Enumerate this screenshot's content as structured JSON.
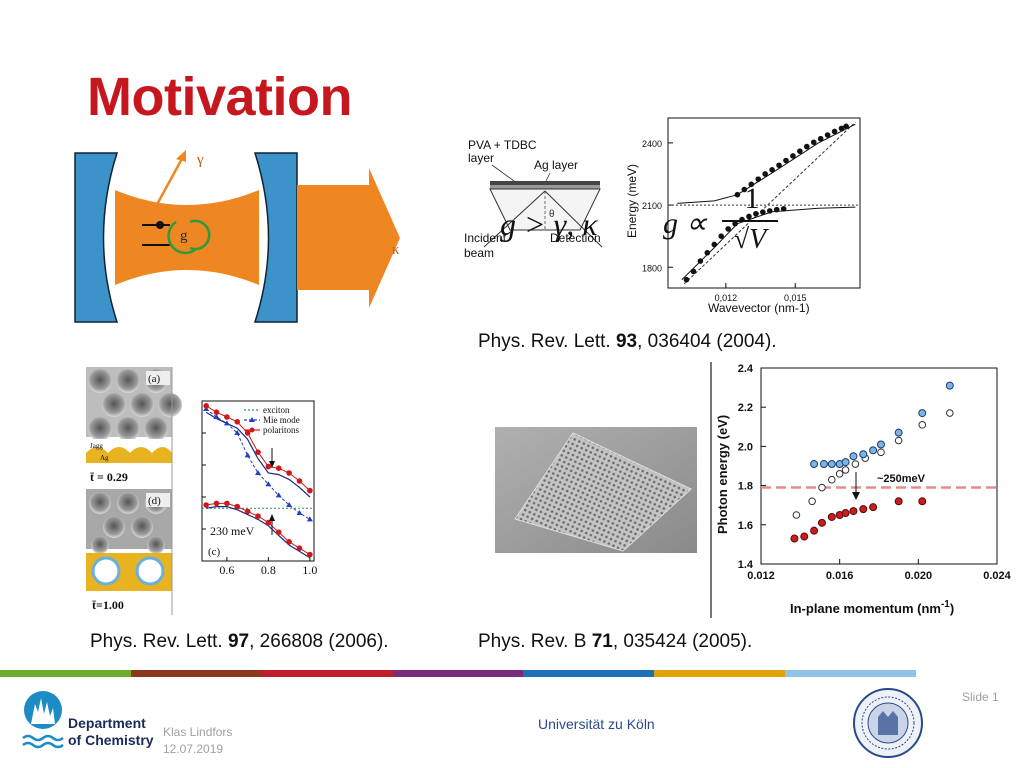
{
  "slide": {
    "title": "Motivation"
  },
  "cavity": {
    "gamma": "γ",
    "kappa": "κ",
    "g": "g"
  },
  "formulas": {
    "strong_coupling": "g > γ, κ",
    "g_prop": "g ∝",
    "g_frac_num": "1",
    "g_frac_den": "√V"
  },
  "fig_prl93": {
    "layer_label_1": "PVA + TDBC",
    "layer_label_2": "layer",
    "ag_label": "Ag layer",
    "theta": "θ",
    "incident_1": "Incident",
    "incident_2": "beam",
    "detection": "Detection",
    "chart_data": {
      "type": "scatter",
      "xlabel": "Wavevector (nm-1)",
      "ylabel": "Energy (meV)",
      "xticks": [
        "0,012",
        "0,015"
      ],
      "yticks": [
        "1800",
        "2100",
        "2400"
      ],
      "xlim": [
        0.0095,
        0.0178
      ],
      "ylim": [
        1700,
        2520
      ],
      "upper_branch": [
        [
          0.0125,
          2150
        ],
        [
          0.0128,
          2175
        ],
        [
          0.0131,
          2200
        ],
        [
          0.0134,
          2225
        ],
        [
          0.0137,
          2250
        ],
        [
          0.014,
          2270
        ],
        [
          0.0143,
          2292
        ],
        [
          0.0146,
          2315
        ],
        [
          0.0149,
          2337
        ],
        [
          0.0152,
          2360
        ],
        [
          0.0155,
          2382
        ],
        [
          0.0158,
          2403
        ],
        [
          0.0161,
          2420
        ],
        [
          0.0164,
          2438
        ],
        [
          0.0167,
          2455
        ],
        [
          0.017,
          2470
        ],
        [
          0.0172,
          2480
        ]
      ],
      "lower_branch": [
        [
          0.0103,
          1740
        ],
        [
          0.0106,
          1780
        ],
        [
          0.0109,
          1830
        ],
        [
          0.0112,
          1870
        ],
        [
          0.0115,
          1910
        ],
        [
          0.0118,
          1950
        ],
        [
          0.0121,
          1985
        ],
        [
          0.0124,
          2010
        ],
        [
          0.0127,
          2030
        ],
        [
          0.013,
          2045
        ],
        [
          0.0133,
          2058
        ],
        [
          0.0136,
          2066
        ],
        [
          0.0139,
          2072
        ],
        [
          0.0142,
          2078
        ],
        [
          0.0145,
          2082
        ]
      ],
      "exciton_level": 2100
    }
  },
  "cite_prl93": {
    "pre": "Phys. Rev. Lett. ",
    "vol": "93",
    "post": ", 036404 (2004)."
  },
  "fig_prl97": {
    "labels": {
      "a": "(a)",
      "d": "(d)",
      "c": "(c)",
      "jagg": "Jagg",
      "ag": "Ag",
      "t1": "t̄ = 0.29",
      "t2": "t̄=1.00"
    },
    "legend": [
      "exciton",
      "Mie mode",
      "polaritons"
    ],
    "annotation": "230 meV",
    "chart_data": {
      "type": "line",
      "xticks": [
        "0.6",
        "0.8",
        "1.0"
      ],
      "xlim": [
        0.48,
        1.02
      ],
      "ylim": [
        0,
        10
      ],
      "mie_mode": [
        [
          0.5,
          9.5
        ],
        [
          0.55,
          9.0
        ],
        [
          0.6,
          8.6
        ],
        [
          0.65,
          8.0
        ],
        [
          0.7,
          6.6
        ],
        [
          0.75,
          5.5
        ],
        [
          0.8,
          4.8
        ],
        [
          0.85,
          4.1
        ],
        [
          0.9,
          3.5
        ],
        [
          0.95,
          3.0
        ],
        [
          1.0,
          2.6
        ]
      ],
      "upper_polariton": [
        [
          0.5,
          9.7
        ],
        [
          0.55,
          9.3
        ],
        [
          0.6,
          9.0
        ],
        [
          0.65,
          8.7
        ],
        [
          0.7,
          8.0
        ],
        [
          0.75,
          6.8
        ],
        [
          0.8,
          5.9
        ],
        [
          0.85,
          5.8
        ],
        [
          0.9,
          5.5
        ],
        [
          0.95,
          5.0
        ],
        [
          1.0,
          4.4
        ]
      ],
      "lower_polariton": [
        [
          0.5,
          3.5
        ],
        [
          0.55,
          3.6
        ],
        [
          0.6,
          3.6
        ],
        [
          0.65,
          3.4
        ],
        [
          0.7,
          3.1
        ],
        [
          0.75,
          2.8
        ],
        [
          0.8,
          2.4
        ],
        [
          0.85,
          1.8
        ],
        [
          0.9,
          1.2
        ],
        [
          0.95,
          0.8
        ],
        [
          1.0,
          0.4
        ]
      ],
      "exciton": 3.3
    }
  },
  "cite_prl97": {
    "pre": "Phys. Rev. Lett. ",
    "vol": "97",
    "post": ", 266808 (2006)."
  },
  "fig_prb71": {
    "annotation": "~250meV",
    "chart_data": {
      "type": "scatter",
      "xlabel": "In-plane momentum (nm",
      "xlabel_sup": "-1",
      "xlabel_end": ")",
      "ylabel": "Photon energy (eV)",
      "xticks": [
        "0.012",
        "0.016",
        "0.020",
        "0.024"
      ],
      "yticks": [
        "1.4",
        "1.6",
        "1.8",
        "2.0",
        "2.2",
        "2.4"
      ],
      "xlim": [
        0.012,
        0.024
      ],
      "ylim": [
        1.4,
        2.4
      ],
      "dashed_level": 1.79,
      "upper_blue": [
        [
          0.0147,
          1.91
        ],
        [
          0.0152,
          1.91
        ],
        [
          0.0156,
          1.91
        ],
        [
          0.016,
          1.91
        ],
        [
          0.0163,
          1.92
        ],
        [
          0.0167,
          1.95
        ],
        [
          0.0172,
          1.96
        ],
        [
          0.0177,
          1.98
        ],
        [
          0.0181,
          2.01
        ],
        [
          0.019,
          2.07
        ],
        [
          0.0202,
          2.17
        ],
        [
          0.0216,
          2.31
        ]
      ],
      "upper_open": [
        [
          0.0138,
          1.65
        ],
        [
          0.0146,
          1.72
        ],
        [
          0.0151,
          1.79
        ],
        [
          0.0156,
          1.83
        ],
        [
          0.016,
          1.86
        ],
        [
          0.0163,
          1.88
        ],
        [
          0.0168,
          1.91
        ],
        [
          0.0173,
          1.94
        ],
        [
          0.0181,
          1.97
        ],
        [
          0.019,
          2.03
        ],
        [
          0.0202,
          2.11
        ],
        [
          0.0216,
          2.17
        ]
      ],
      "lower_red": [
        [
          0.0137,
          1.53
        ],
        [
          0.0142,
          1.54
        ],
        [
          0.0147,
          1.57
        ],
        [
          0.0151,
          1.61
        ],
        [
          0.0156,
          1.64
        ],
        [
          0.016,
          1.65
        ],
        [
          0.0163,
          1.66
        ],
        [
          0.0167,
          1.67
        ],
        [
          0.0172,
          1.68
        ],
        [
          0.0177,
          1.69
        ],
        [
          0.019,
          1.72
        ],
        [
          0.0202,
          1.72
        ]
      ]
    }
  },
  "cite_prb71": {
    "pre": "Phys. Rev. B ",
    "vol": "71",
    "post": ", 035424 (2005)."
  },
  "footer": {
    "department_1": "Department",
    "department_2": "of Chemistry",
    "author": "Klas Lindfors",
    "date": "12.07.2019",
    "university": "Universität zu Köln",
    "slide": "Slide 1",
    "bar_colors": [
      "#6fae2c",
      "#8a3a1a",
      "#c01e2e",
      "#7a2a7a",
      "#1d6fb8",
      "#e0a400",
      "#8fc4e8"
    ]
  }
}
